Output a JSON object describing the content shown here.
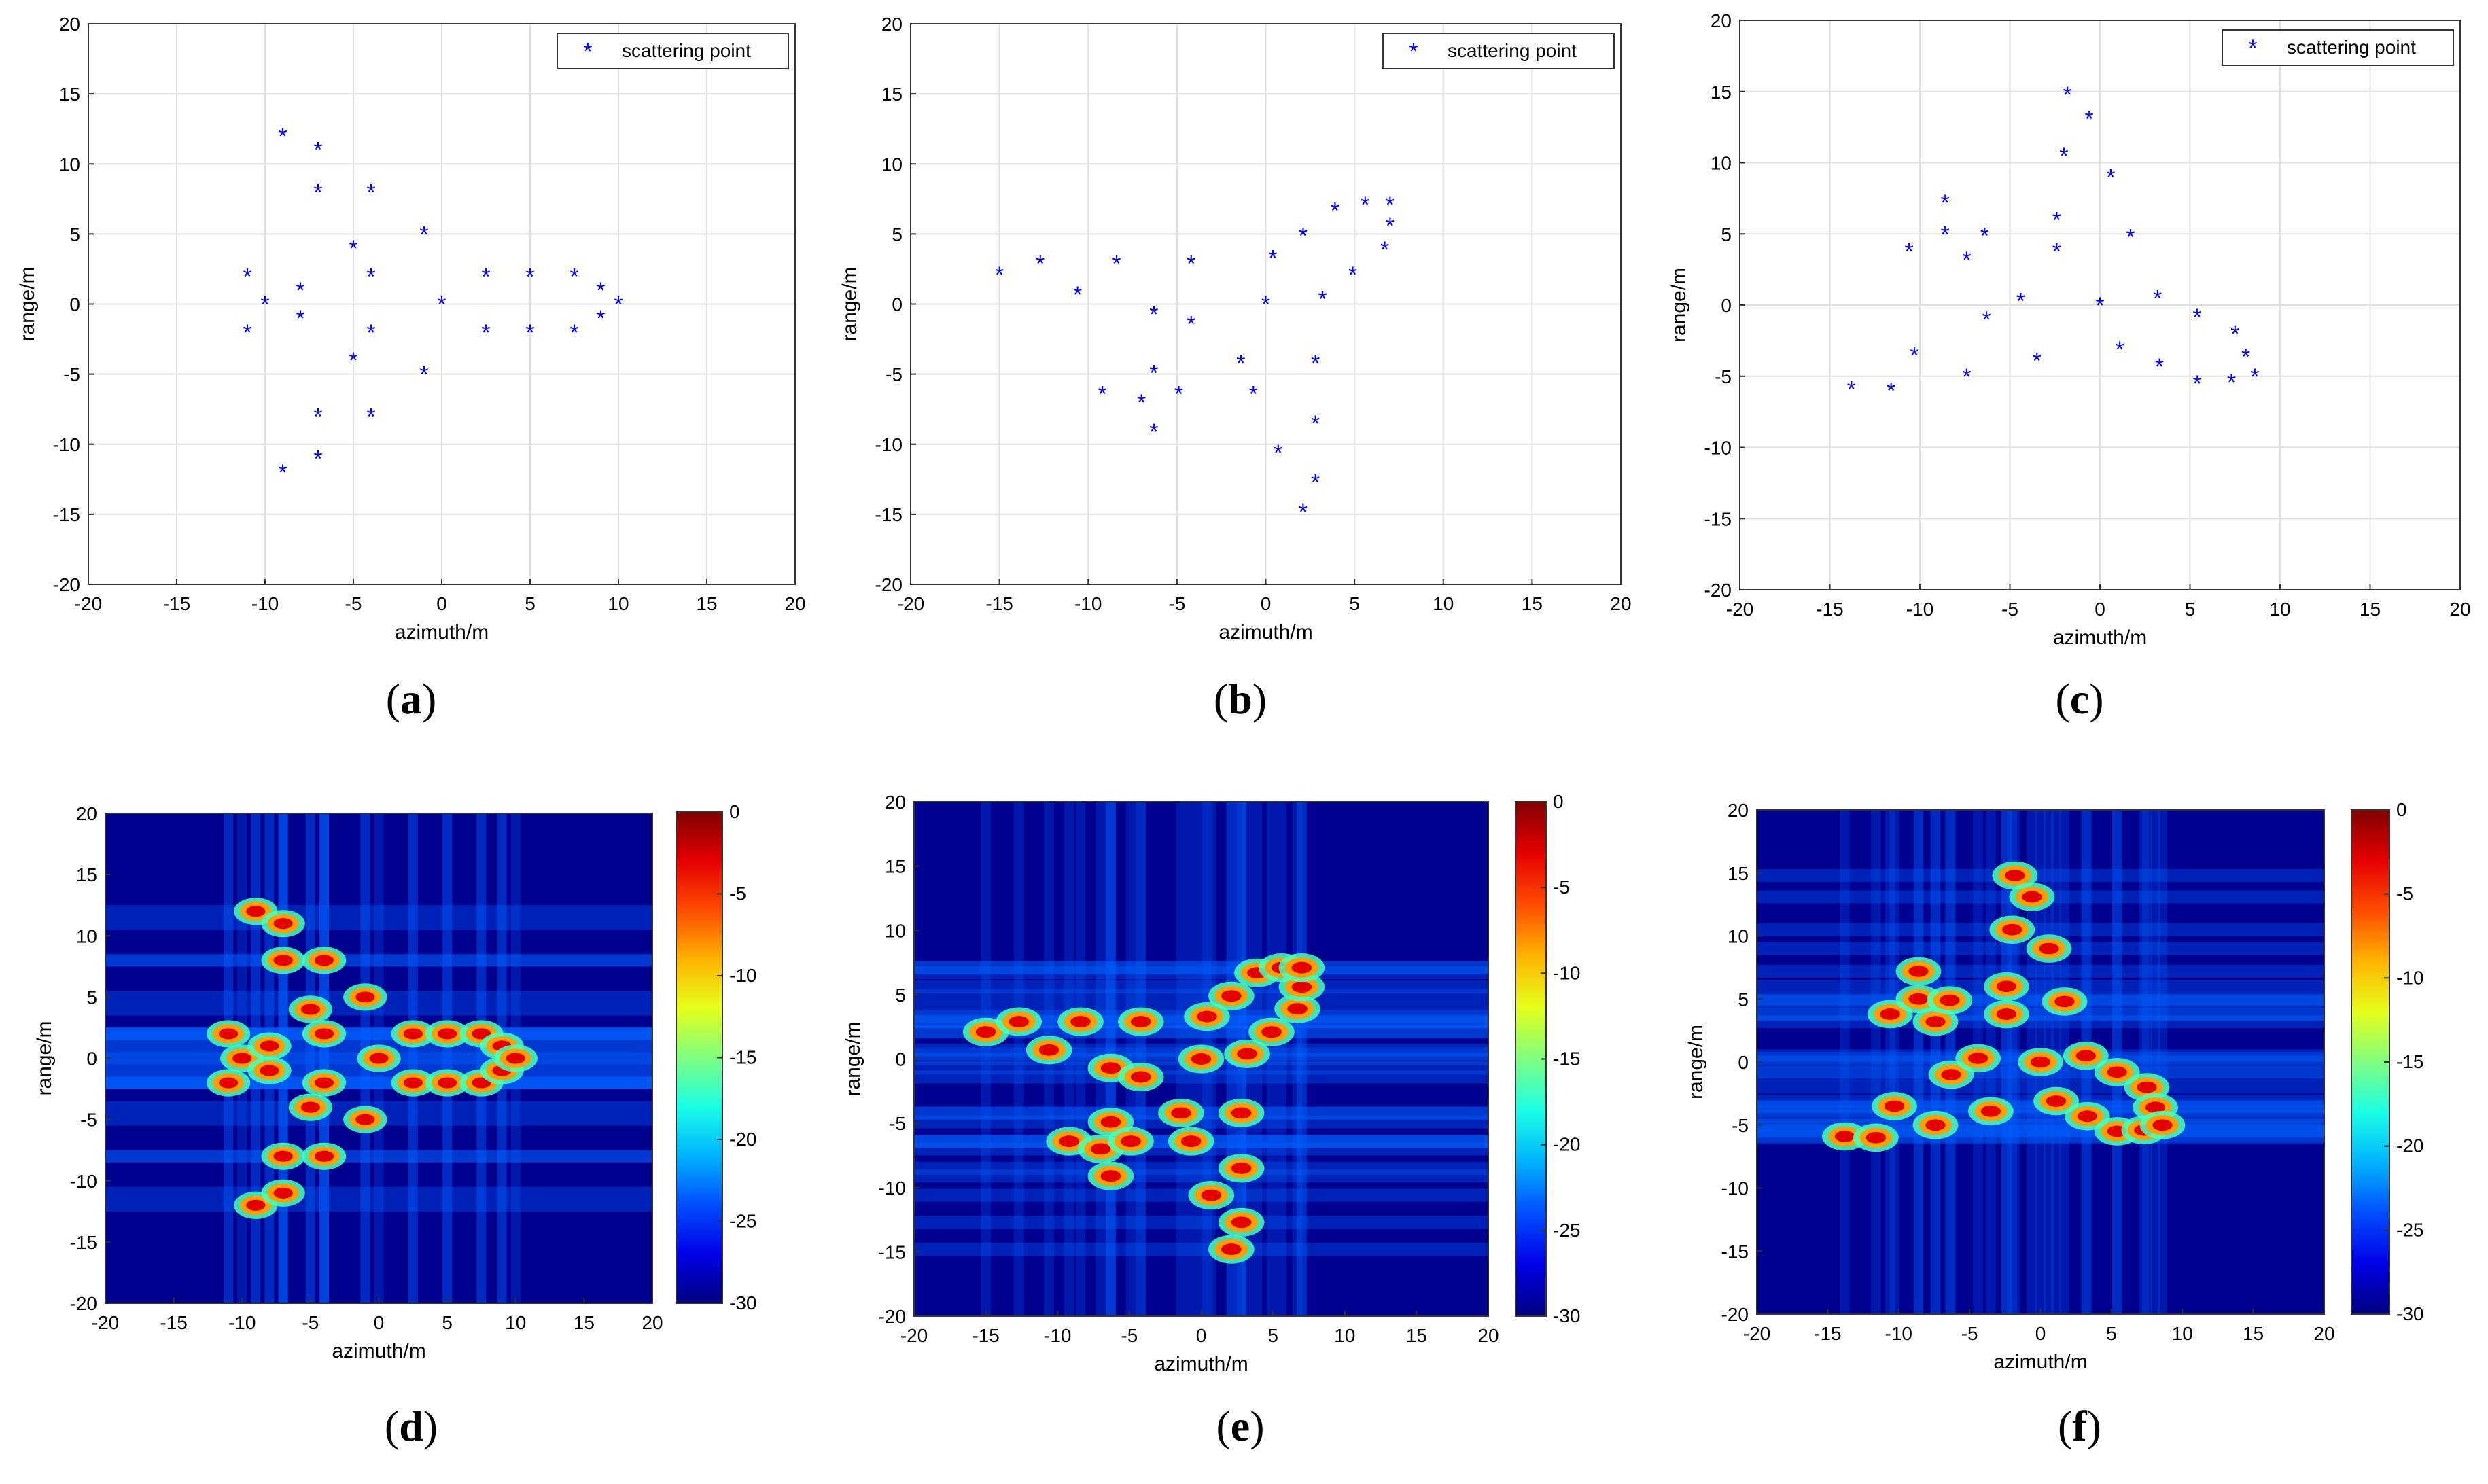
{
  "chart_data": [
    {
      "panel": "a",
      "type": "scatter",
      "caption_letter": "a",
      "xlabel": "azimuth/m",
      "ylabel": "range/m",
      "xlim": [
        -20,
        20
      ],
      "ylim": [
        -20,
        20
      ],
      "xticks": [
        -20,
        -15,
        -10,
        -5,
        0,
        5,
        10,
        15,
        20
      ],
      "yticks": [
        -20,
        -15,
        -10,
        -5,
        0,
        5,
        10,
        15,
        20
      ],
      "grid": true,
      "legend": "scattering point",
      "legend_position": "top-right",
      "marker": "*",
      "points": [
        [
          -11,
          2
        ],
        [
          -11,
          -2
        ],
        [
          -10,
          0
        ],
        [
          -9,
          12
        ],
        [
          -9,
          -12
        ],
        [
          -8,
          1
        ],
        [
          -8,
          -1
        ],
        [
          -7,
          11
        ],
        [
          -7,
          8
        ],
        [
          -7,
          -8
        ],
        [
          -7,
          -11
        ],
        [
          -5,
          4
        ],
        [
          -5,
          -4
        ],
        [
          -4,
          8
        ],
        [
          -4,
          2
        ],
        [
          -4,
          -2
        ],
        [
          -4,
          -8
        ],
        [
          -1,
          5
        ],
        [
          -1,
          -5
        ],
        [
          0,
          0
        ],
        [
          2.5,
          2
        ],
        [
          2.5,
          -2
        ],
        [
          5,
          2
        ],
        [
          5,
          -2
        ],
        [
          7.5,
          2
        ],
        [
          7.5,
          -2
        ],
        [
          9,
          1
        ],
        [
          9,
          -1
        ],
        [
          10,
          0
        ]
      ]
    },
    {
      "panel": "b",
      "type": "scatter",
      "caption_letter": "b",
      "xlabel": "azimuth/m",
      "ylabel": "range/m",
      "xlim": [
        -20,
        20
      ],
      "ylim": [
        -20,
        20
      ],
      "xticks": [
        -20,
        -15,
        -10,
        -5,
        0,
        5,
        10,
        15,
        20
      ],
      "yticks": [
        -20,
        -15,
        -10,
        -5,
        0,
        5,
        10,
        15,
        20
      ],
      "grid": true,
      "legend": "scattering point",
      "legend_position": "top-right",
      "marker": "*",
      "points": [
        [
          -15,
          2.1
        ],
        [
          -12.7,
          2.9
        ],
        [
          -10.6,
          0.7
        ],
        [
          -8.4,
          2.9
        ],
        [
          -9.2,
          -6.4
        ],
        [
          -7,
          -7
        ],
        [
          -6.3,
          -0.7
        ],
        [
          -6.3,
          -4.9
        ],
        [
          -6.3,
          -9.1
        ],
        [
          -4.9,
          -6.4
        ],
        [
          -4.2,
          2.9
        ],
        [
          -4.2,
          -1.4
        ],
        [
          -1.4,
          -4.2
        ],
        [
          -0.7,
          -6.4
        ],
        [
          0,
          0
        ],
        [
          0.4,
          3.3
        ],
        [
          0.7,
          -10.6
        ],
        [
          2.1,
          4.9
        ],
        [
          2.1,
          -14.8
        ],
        [
          2.8,
          -4.2
        ],
        [
          2.8,
          -8.5
        ],
        [
          2.8,
          -12.7
        ],
        [
          3.2,
          0.4
        ],
        [
          3.9,
          6.7
        ],
        [
          4.9,
          2.1
        ],
        [
          5.6,
          7.1
        ],
        [
          6.7,
          3.9
        ],
        [
          7,
          5.6
        ],
        [
          7,
          7.1
        ]
      ]
    },
    {
      "panel": "c",
      "type": "scatter",
      "caption_letter": "c",
      "xlabel": "azimuth/m",
      "ylabel": "range/m",
      "xlim": [
        -20,
        20
      ],
      "ylim": [
        -20,
        20
      ],
      "xticks": [
        -20,
        -15,
        -10,
        -5,
        0,
        5,
        10,
        15,
        20
      ],
      "yticks": [
        -20,
        -15,
        -10,
        -5,
        0,
        5,
        10,
        15,
        20
      ],
      "grid": true,
      "legend": "scattering point",
      "legend_position": "top-right",
      "marker": "*",
      "points": [
        [
          -13.8,
          -5.9
        ],
        [
          -11.6,
          -6
        ],
        [
          -10.3,
          -3.5
        ],
        [
          -10.6,
          3.8
        ],
        [
          -8.6,
          7.2
        ],
        [
          -8.6,
          5
        ],
        [
          -7.4,
          3.2
        ],
        [
          -7.4,
          -5
        ],
        [
          -6.4,
          4.9
        ],
        [
          -6.3,
          -1
        ],
        [
          -4.4,
          0.3
        ],
        [
          -3.5,
          -3.9
        ],
        [
          -2.4,
          6
        ],
        [
          -2.4,
          3.8
        ],
        [
          -2,
          10.5
        ],
        [
          -1.8,
          14.8
        ],
        [
          -0.6,
          13.1
        ],
        [
          0,
          0
        ],
        [
          0.6,
          9
        ],
        [
          1.1,
          -3.1
        ],
        [
          1.7,
          4.8
        ],
        [
          3.2,
          0.5
        ],
        [
          3.3,
          -4.3
        ],
        [
          5.4,
          -0.8
        ],
        [
          5.4,
          -5.5
        ],
        [
          7.3,
          -5.4
        ],
        [
          7.5,
          -2
        ],
        [
          8.1,
          -3.6
        ],
        [
          8.6,
          -5
        ]
      ]
    },
    {
      "panel": "d",
      "type": "heatmap",
      "caption_letter": "d",
      "xlabel": "azimuth/m",
      "ylabel": "range/m",
      "xlim": [
        -20,
        20
      ],
      "ylim": [
        -20,
        20
      ],
      "xticks": [
        -20,
        -15,
        -10,
        -5,
        0,
        5,
        10,
        15,
        20
      ],
      "yticks": [
        -20,
        -15,
        -10,
        -5,
        0,
        5,
        10,
        15,
        20
      ],
      "colorbar": {
        "range": [
          -30,
          0
        ],
        "ticks": [
          0,
          -5,
          -10,
          -15,
          -20,
          -25,
          -30
        ],
        "colormap": "jet"
      },
      "points_source_panel": "a"
    },
    {
      "panel": "e",
      "type": "heatmap",
      "caption_letter": "e",
      "xlabel": "azimuth/m",
      "ylabel": "range/m",
      "xlim": [
        -20,
        20
      ],
      "ylim": [
        -20,
        20
      ],
      "xticks": [
        -20,
        -15,
        -10,
        -5,
        0,
        5,
        10,
        15,
        20
      ],
      "yticks": [
        -20,
        -15,
        -10,
        -5,
        0,
        5,
        10,
        15,
        20
      ],
      "colorbar": {
        "range": [
          -30,
          0
        ],
        "ticks": [
          0,
          -5,
          -10,
          -15,
          -20,
          -25,
          -30
        ],
        "colormap": "jet"
      },
      "points_source_panel": "b"
    },
    {
      "panel": "f",
      "type": "heatmap",
      "caption_letter": "f",
      "xlabel": "azimuth/m",
      "ylabel": "range/m",
      "xlim": [
        -20,
        20
      ],
      "ylim": [
        -20,
        20
      ],
      "xticks": [
        -20,
        -15,
        -10,
        -5,
        0,
        5,
        10,
        15,
        20
      ],
      "yticks": [
        -20,
        -15,
        -10,
        -5,
        0,
        5,
        10,
        15,
        20
      ],
      "colorbar": {
        "range": [
          -30,
          0
        ],
        "ticks": [
          0,
          -5,
          -10,
          -15,
          -20,
          -25,
          -30
        ],
        "colormap": "jet"
      },
      "points_source_panel": "c"
    }
  ],
  "colors": {
    "marker": "#0000ff",
    "background": "#00008f",
    "grid": "#e0e0e0"
  }
}
